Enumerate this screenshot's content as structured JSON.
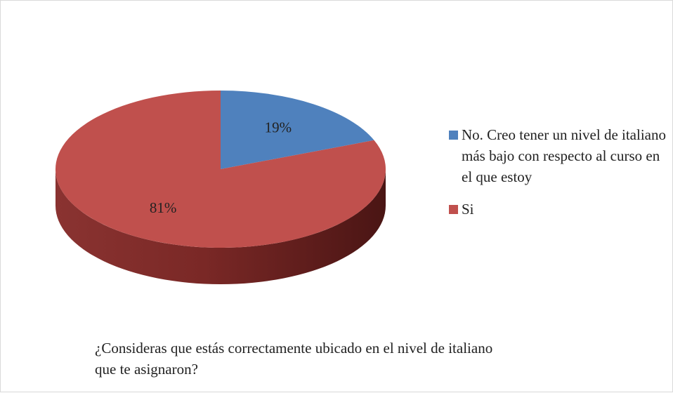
{
  "chart_data": {
    "type": "pie",
    "title": "¿Consideras que estás correctamente ubicado en el nivel de italiano que te asignaron?",
    "categories": [
      "No. Creo tener un nivel de italiano más bajo con respecto al curso en el que estoy",
      "Si"
    ],
    "values": [
      19,
      81
    ],
    "value_labels": [
      "19%",
      "81%"
    ],
    "colors": [
      "#4f81bd",
      "#c0504d"
    ],
    "legend": "right"
  }
}
